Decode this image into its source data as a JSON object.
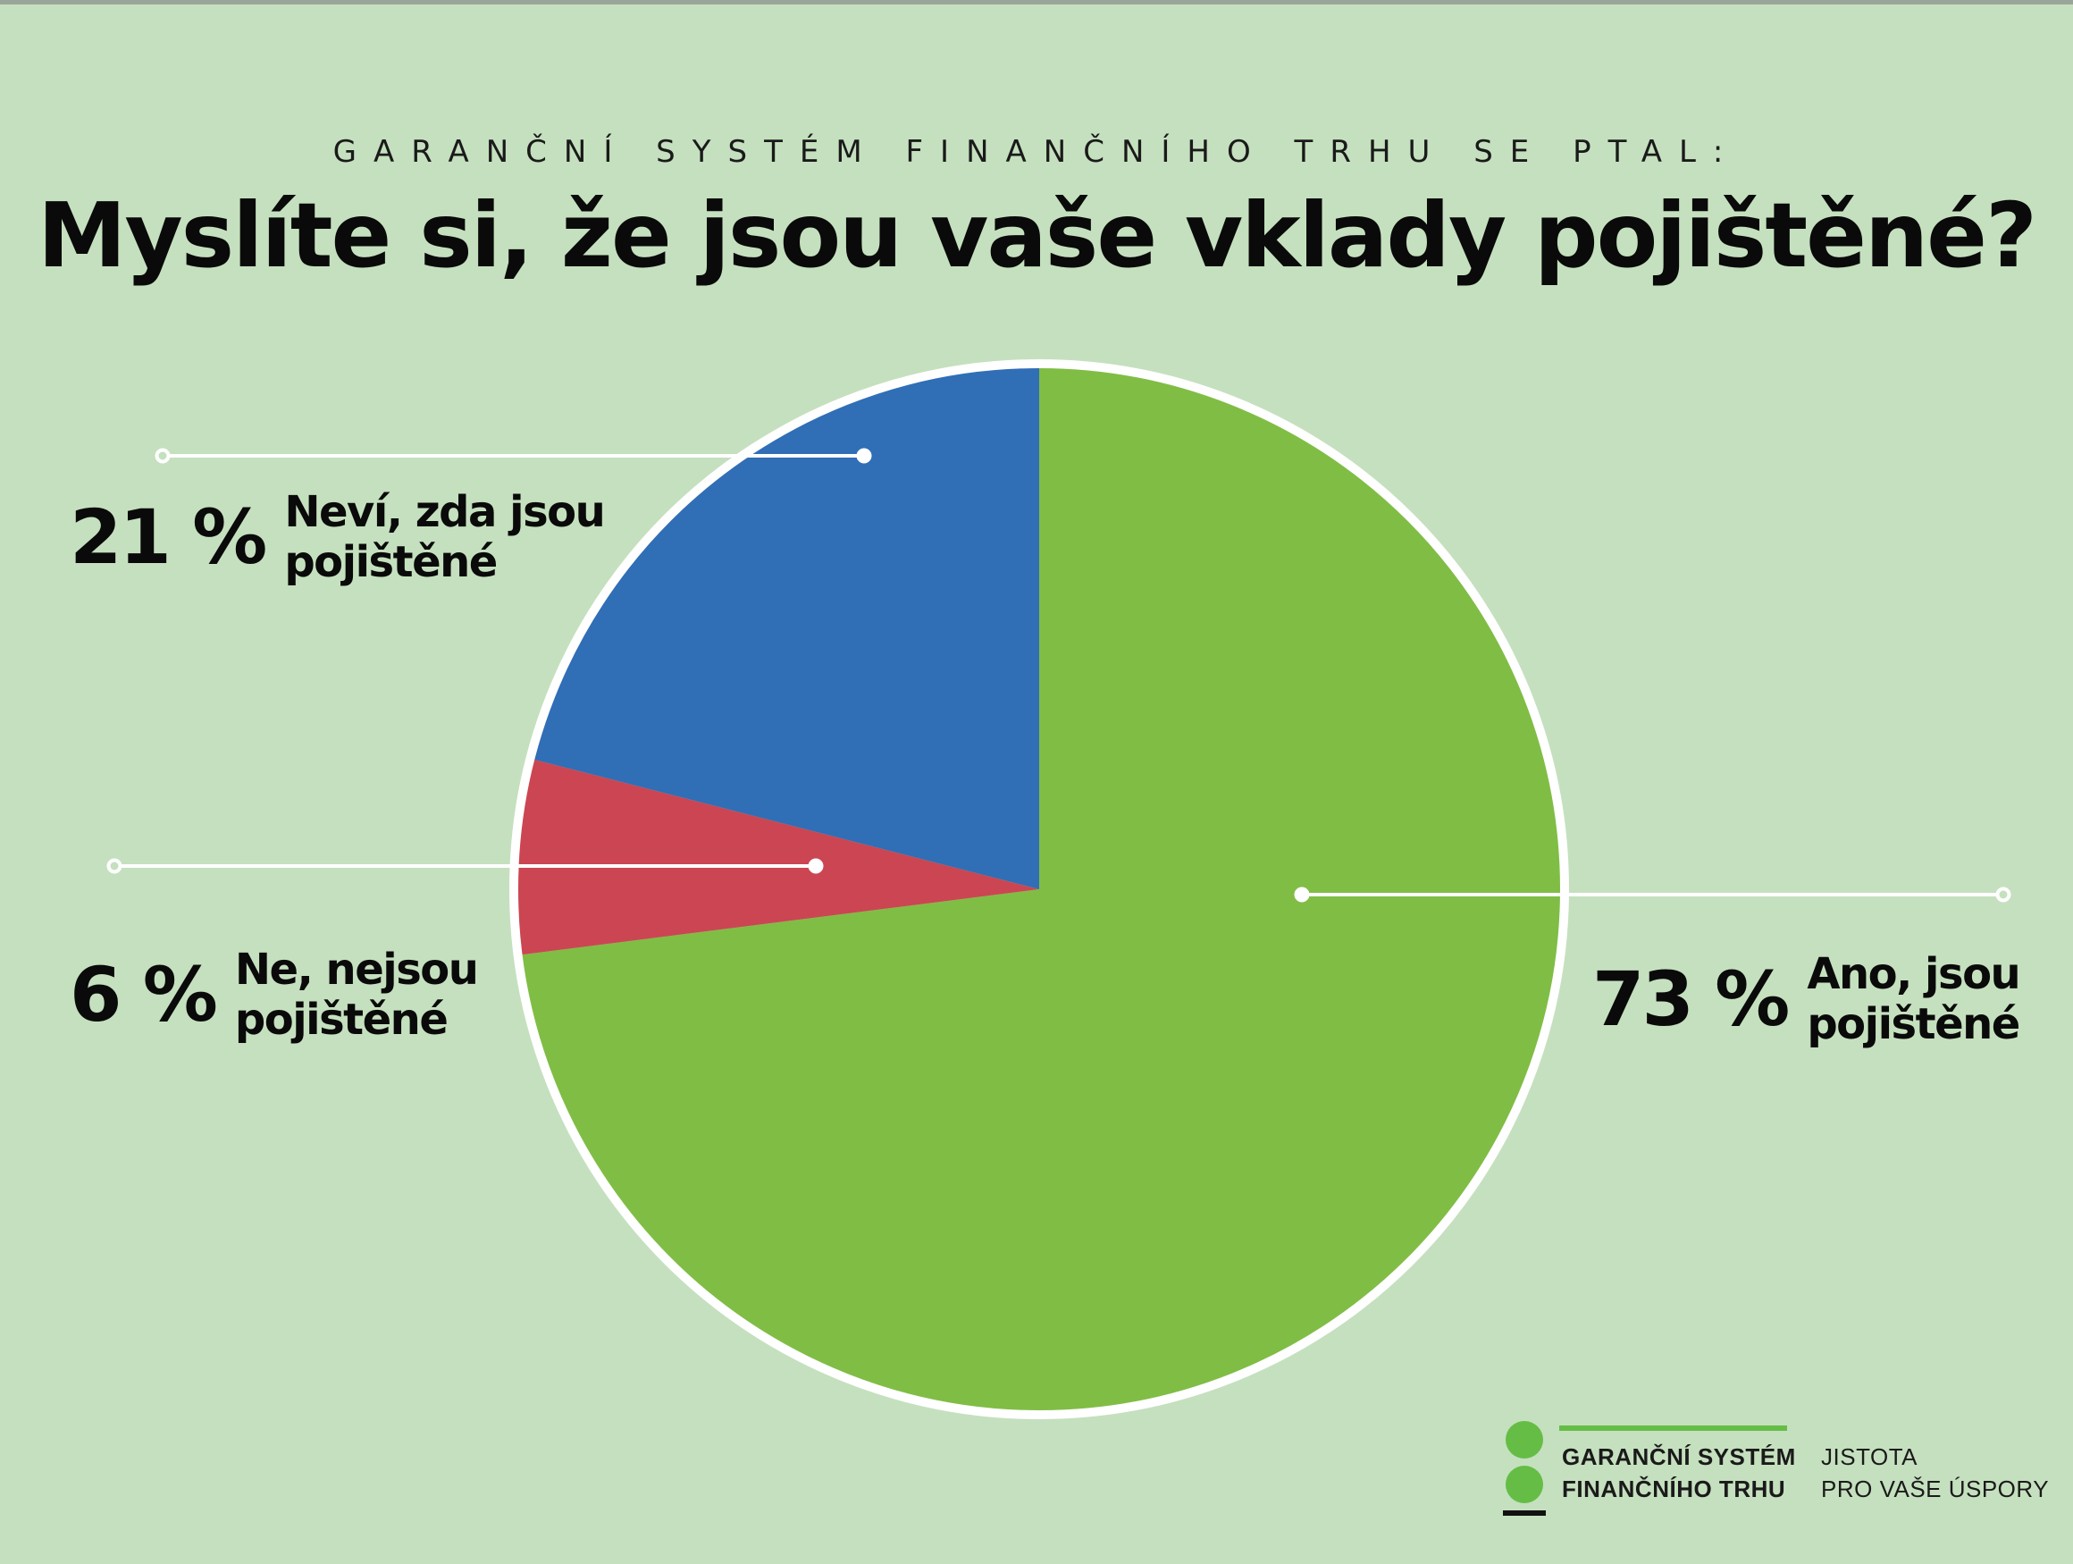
{
  "header": {
    "kicker": "GARANČNÍ SYSTÉM FINANČNÍHO TRHU SE PTAL:",
    "title": "Myslíte si, že jsou vaše vklady pojištěné?"
  },
  "chart_data": {
    "type": "pie",
    "start_angle_deg": 0,
    "direction": "clockwise",
    "slices": [
      {
        "label": "Ano, jsou pojištěné",
        "value": 73,
        "display": "73 %",
        "color": "#80bd45"
      },
      {
        "label": "Ne, nejsou pojištěné",
        "value": 6,
        "display": "6 %",
        "color": "#cb4652"
      },
      {
        "label": "Neví, zda jsou pojištěné",
        "value": 21,
        "display": "21 %",
        "color": "#306eb6"
      }
    ],
    "edge_color": "#ffffff",
    "legend": "none"
  },
  "callouts": {
    "ano": {
      "pct": "73 %",
      "line1": "Ano, jsou",
      "line2": "pojištěné"
    },
    "ne": {
      "pct": "6 %",
      "line1": "Ne, nejsou",
      "line2": "pojištěné"
    },
    "nevi": {
      "pct": "21 %",
      "line1": "Neví, zda jsou",
      "line2": "pojištěné"
    }
  },
  "logo": {
    "name_line1": "GARANČNÍ SYSTÉM",
    "name_line2": "FINANČNÍHO TRHU",
    "tagline_line1": "JISTOTA",
    "tagline_line2": "PRO VAŠE ÚSPORY",
    "accent": "#65bd45"
  }
}
